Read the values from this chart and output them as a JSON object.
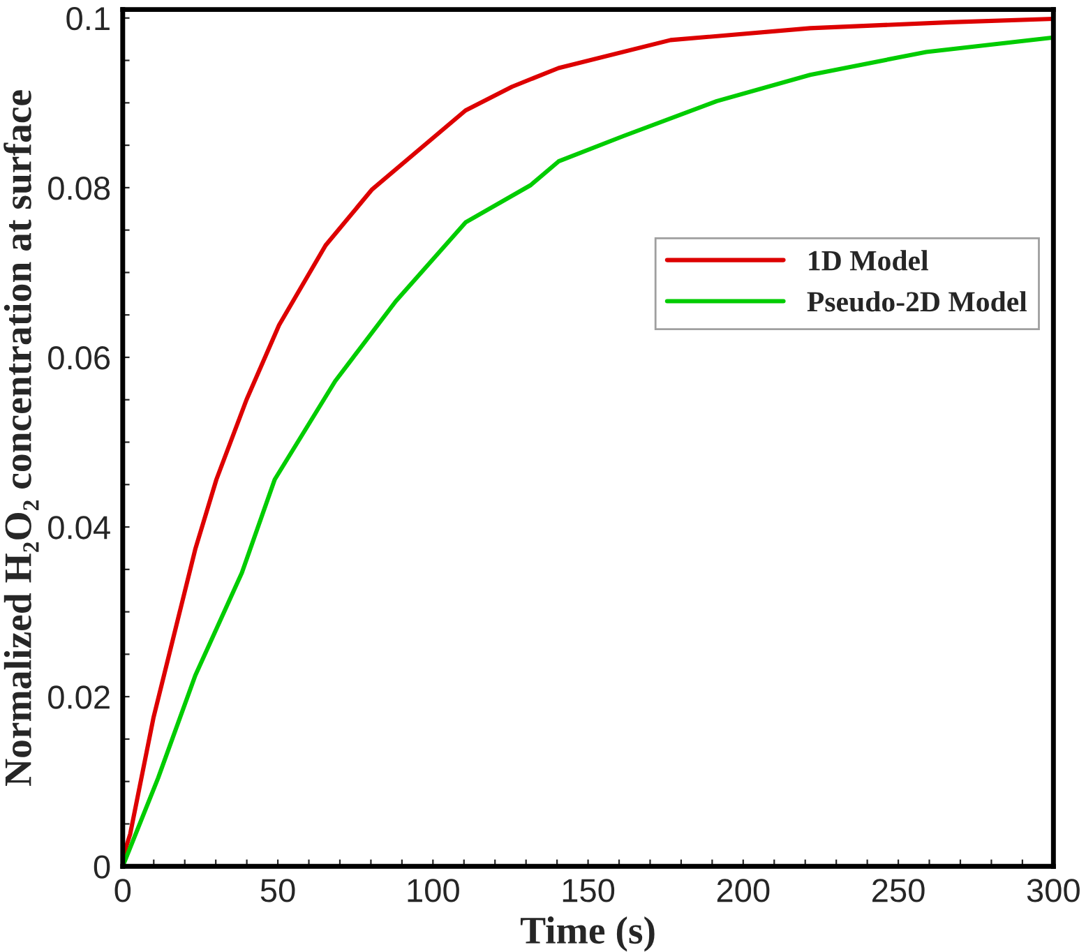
{
  "chart_data": {
    "type": "line",
    "xlabel": "Time (s)",
    "ylabel": "Normalized H₂O₂ concentration at surface",
    "xlim": [
      0,
      300
    ],
    "ylim": [
      0,
      0.101
    ],
    "xticks": [
      0,
      {
        "value": 10,
        "label": null
      },
      {
        "value": 20,
        "label": null
      },
      {
        "value": 30,
        "label": null
      },
      {
        "value": 40,
        "label": null
      },
      50,
      {
        "value": 60,
        "label": null
      },
      {
        "value": 70,
        "label": null
      },
      {
        "value": 80,
        "label": null
      },
      {
        "value": 90,
        "label": null
      },
      100,
      {
        "value": 110,
        "label": null
      },
      {
        "value": 120,
        "label": null
      },
      {
        "value": 130,
        "label": null
      },
      {
        "value": 140,
        "label": null
      },
      150,
      {
        "value": 160,
        "label": null
      },
      {
        "value": 170,
        "label": null
      },
      {
        "value": 180,
        "label": null
      },
      {
        "value": 190,
        "label": null
      },
      200,
      {
        "value": 210,
        "label": null
      },
      {
        "value": 220,
        "label": null
      },
      {
        "value": 230,
        "label": null
      },
      {
        "value": 240,
        "label": null
      },
      250,
      {
        "value": 260,
        "label": null
      },
      {
        "value": 270,
        "label": null
      },
      {
        "value": 280,
        "label": null
      },
      {
        "value": 290,
        "label": null
      },
      300
    ],
    "yticks": [
      0,
      {
        "value": 0.005,
        "label": null
      },
      {
        "value": 0.01,
        "label": null
      },
      {
        "value": 0.015,
        "label": null
      },
      0.02,
      {
        "value": 0.025,
        "label": null
      },
      {
        "value": 0.03,
        "label": null
      },
      {
        "value": 0.035,
        "label": null
      },
      0.04,
      {
        "value": 0.045,
        "label": null
      },
      {
        "value": 0.05,
        "label": null
      },
      {
        "value": 0.055,
        "label": null
      },
      0.06,
      {
        "value": 0.065,
        "label": null
      },
      {
        "value": 0.07,
        "label": null
      },
      {
        "value": 0.075,
        "label": null
      },
      0.08,
      {
        "value": 0.085,
        "label": null
      },
      {
        "value": 0.09,
        "label": null
      },
      {
        "value": 0.095,
        "label": null
      },
      0.1
    ],
    "grid": false,
    "legend": "right",
    "marker": "none",
    "line_style": "solid",
    "series": [
      {
        "name": "1D Model",
        "color": "#dd0000",
        "x": [
          0,
          2.4,
          9.9,
          23.4,
          30.2,
          39.9,
          50.4,
          65.4,
          80.4,
          110.5,
          125.5,
          140.5,
          176.6,
          221.6,
          266.7,
          300
        ],
        "values": [
          0.001,
          0.0038,
          0.0175,
          0.0374,
          0.0456,
          0.055,
          0.0638,
          0.0732,
          0.0798,
          0.0891,
          0.0919,
          0.0941,
          0.0974,
          0.0988,
          0.0995,
          0.0999
        ]
      },
      {
        "name": "Pseudo-2D Model",
        "color": "#00cc00",
        "x": [
          0,
          11.4,
          23.4,
          38.4,
          49,
          68.5,
          88,
          110.5,
          131.5,
          140.5,
          161.5,
          191.5,
          221.6,
          259,
          300
        ],
        "values": [
          0,
          0.0104,
          0.0225,
          0.0346,
          0.0456,
          0.0572,
          0.0666,
          0.0759,
          0.0803,
          0.0831,
          0.0861,
          0.0902,
          0.0933,
          0.096,
          0.0977
        ]
      }
    ]
  }
}
